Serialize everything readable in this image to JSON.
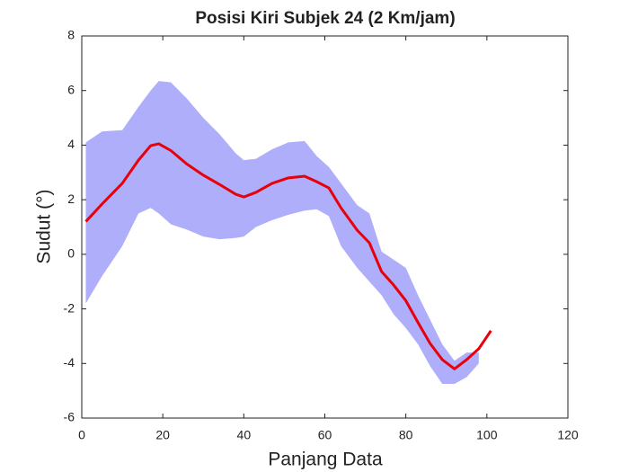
{
  "chart_data": {
    "type": "line",
    "title": "Posisi Kiri Subjek 24 (2 Km/jam)",
    "xlabel": "Panjang Data",
    "ylabel": "Sudut (°)",
    "x": [
      1,
      5,
      10,
      14,
      17,
      19,
      22,
      26,
      30,
      34,
      38,
      40,
      43,
      47,
      51,
      55,
      58,
      61,
      64,
      68,
      71,
      74,
      77,
      80,
      83,
      86,
      89,
      92,
      95,
      98,
      101
    ],
    "series": [
      {
        "color": "#e8000b",
        "values": [
          1.2,
          1.84,
          2.6,
          3.45,
          3.98,
          4.05,
          3.8,
          3.3,
          2.9,
          2.56,
          2.2,
          2.1,
          2.27,
          2.6,
          2.8,
          2.86,
          2.66,
          2.43,
          1.7,
          0.88,
          0.42,
          -0.63,
          -1.13,
          -1.7,
          -2.5,
          -3.27,
          -3.86,
          -4.2,
          -3.86,
          -3.46,
          -2.8
        ]
      }
    ],
    "band": {
      "color": "#aeaefa",
      "upper": [
        4.1,
        4.5,
        4.55,
        5.4,
        6.0,
        6.35,
        6.3,
        5.7,
        5.0,
        4.4,
        3.7,
        3.45,
        3.5,
        3.85,
        4.1,
        4.15,
        3.6,
        3.2,
        2.6,
        1.8,
        1.5,
        0.1,
        -0.2,
        -0.5,
        -1.5,
        -2.4,
        -3.3,
        -3.9,
        -3.6,
        -3.6,
        null
      ],
      "lower": [
        -1.8,
        -0.8,
        0.3,
        1.5,
        1.7,
        1.5,
        1.1,
        0.9,
        0.65,
        0.55,
        0.6,
        0.65,
        1.0,
        1.25,
        1.45,
        1.6,
        1.65,
        1.4,
        0.3,
        -0.5,
        -1.0,
        -1.5,
        -2.2,
        -2.7,
        -3.3,
        -4.1,
        -4.75,
        -4.75,
        -4.5,
        -4.0,
        null
      ]
    },
    "xlim": [
      0,
      120
    ],
    "xticks": [
      0,
      20,
      40,
      60,
      80,
      100,
      120
    ],
    "ylim": [
      -6,
      8
    ],
    "yticks": [
      -6,
      -4,
      -2,
      0,
      2,
      4,
      6,
      8
    ],
    "grid": false
  }
}
